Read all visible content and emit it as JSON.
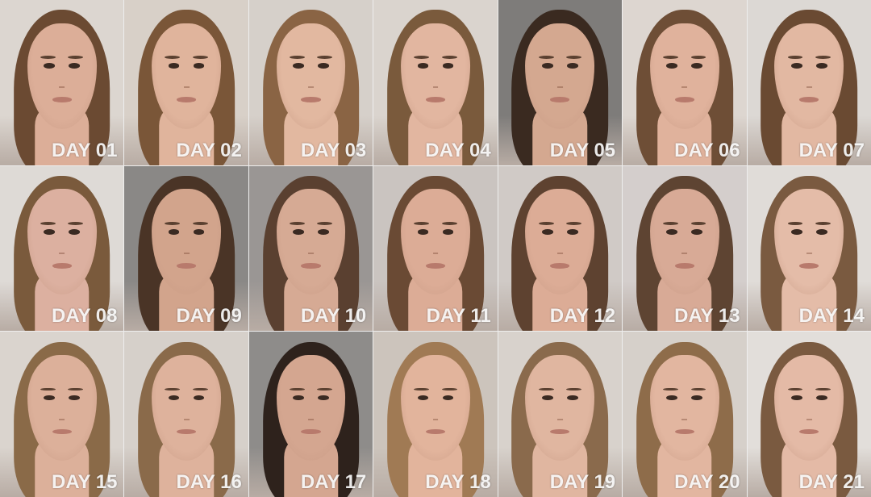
{
  "photos": [
    {
      "label": "DAY 01",
      "bg": "#dcd6d0",
      "hair": "#6b4a32",
      "skin": "#dcae98"
    },
    {
      "label": "DAY 02",
      "bg": "#d8d0c8",
      "hair": "#7a5638",
      "skin": "#e0b49c"
    },
    {
      "label": "DAY 03",
      "bg": "#d6d0ca",
      "hair": "#8a6444",
      "skin": "#e2b8a0"
    },
    {
      "label": "DAY 04",
      "bg": "#dad4ce",
      "hair": "#7a5a3c",
      "skin": "#e2b6a0"
    },
    {
      "label": "DAY 05",
      "bg": "#7e7c7a",
      "hair": "#3a2a20",
      "skin": "#d4a890"
    },
    {
      "label": "DAY 06",
      "bg": "#ddd6d0",
      "hair": "#6e4e36",
      "skin": "#e0b29c"
    },
    {
      "label": "DAY 07",
      "bg": "#dcd8d4",
      "hair": "#6a4a32",
      "skin": "#e2b8a2"
    },
    {
      "label": "DAY 08",
      "bg": "#dedad6",
      "hair": "#7a5a3c",
      "skin": "#dcb0a0"
    },
    {
      "label": "DAY 09",
      "bg": "#8a8886",
      "hair": "#4a3426",
      "skin": "#d2a48c"
    },
    {
      "label": "DAY 10",
      "bg": "#9a9694",
      "hair": "#5a4030",
      "skin": "#d6aa94"
    },
    {
      "label": "DAY 11",
      "bg": "#cac4c0",
      "hair": "#6a4a34",
      "skin": "#dcac96"
    },
    {
      "label": "DAY 12",
      "bg": "#d0cac6",
      "hair": "#5e4230",
      "skin": "#dcac96"
    },
    {
      "label": "DAY 13",
      "bg": "#d4cecc",
      "hair": "#5e4432",
      "skin": "#d8aa96"
    },
    {
      "label": "DAY 14",
      "bg": "#e0dcd8",
      "hair": "#7a5a40",
      "skin": "#e4bca8"
    },
    {
      "label": "DAY 15",
      "bg": "#dad4ce",
      "hair": "#8a6a48",
      "skin": "#dcb09a"
    },
    {
      "label": "DAY 16",
      "bg": "#d6d0ca",
      "hair": "#8a6a4a",
      "skin": "#deb29c"
    },
    {
      "label": "DAY 17",
      "bg": "#8e8c8a",
      "hair": "#2e221c",
      "skin": "#d4a690"
    },
    {
      "label": "DAY 18",
      "bg": "#ccc4bc",
      "hair": "#a07a54",
      "skin": "#e2b49c"
    },
    {
      "label": "DAY 19",
      "bg": "#d8d2cc",
      "hair": "#8a6a4c",
      "skin": "#e0b6a0"
    },
    {
      "label": "DAY 20",
      "bg": "#d6d0ca",
      "hair": "#8e6c4a",
      "skin": "#e2b6a0"
    },
    {
      "label": "DAY 21",
      "bg": "#e2deda",
      "hair": "#7a5a40",
      "skin": "#e4baa6"
    }
  ]
}
